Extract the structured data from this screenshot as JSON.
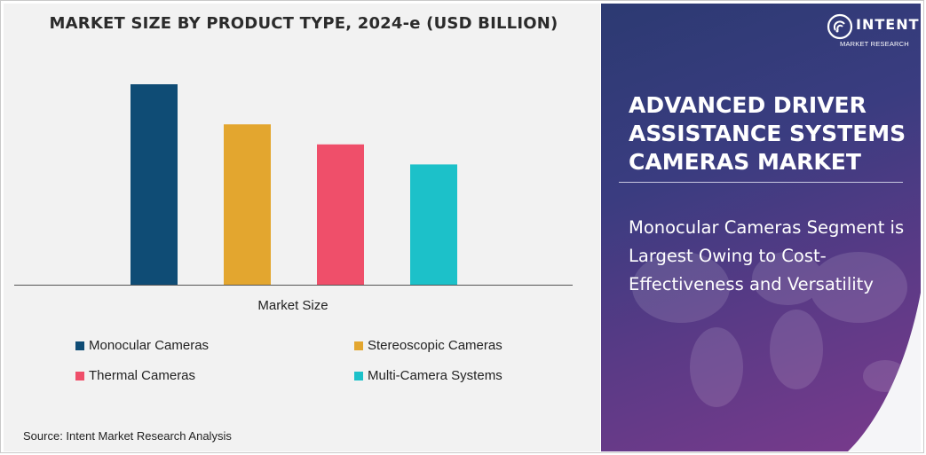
{
  "chart_data": {
    "type": "bar",
    "title": "MARKET SIZE BY PRODUCT TYPE, 2024-e (USD BILLION)",
    "xlabel": "Market Size",
    "ylabel": "",
    "categories": [
      "Market Size"
    ],
    "series": [
      {
        "name": "Monocular Cameras",
        "values": [
          100
        ],
        "color": "#0f4c75"
      },
      {
        "name": "Stereoscopic Cameras",
        "values": [
          80
        ],
        "color": "#e3a62f"
      },
      {
        "name": "Thermal Cameras",
        "values": [
          70
        ],
        "color": "#ef4f6a"
      },
      {
        "name": "Multi-Camera Systems",
        "values": [
          60
        ],
        "color": "#1cc1c9"
      }
    ],
    "ylim": [
      0,
      100
    ],
    "grid": false,
    "legend_placement": "bottom"
  },
  "source": "Source: Intent Market Research Analysis",
  "panel": {
    "logo_name": "INTENT",
    "logo_sub": "MARKET RESEARCH",
    "report_title": "ADVANCED DRIVER ASSISTANCE SYSTEMS CAMERAS MARKET",
    "insight": "Monocular Cameras Segment is Largest Owing to Cost-Effectiveness and Versatility"
  },
  "colors": {
    "panel_dark": "#2c3a72",
    "panel_accent": "#7a3a8c",
    "chart_bg": "#f2f2f2"
  }
}
